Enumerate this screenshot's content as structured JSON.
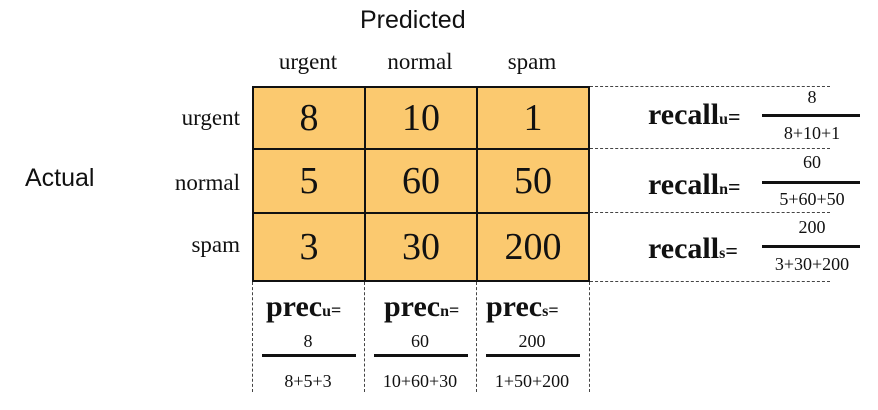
{
  "title_predicted": "Predicted",
  "title_actual": "Actual",
  "columns": [
    "urgent",
    "normal",
    "spam"
  ],
  "rows": [
    "urgent",
    "normal",
    "spam"
  ],
  "matrix": [
    [
      "8",
      "10",
      "1"
    ],
    [
      "5",
      "60",
      "50"
    ],
    [
      "3",
      "30",
      "200"
    ]
  ],
  "recall": [
    {
      "label": "recall",
      "sub": "u",
      "eq": "=",
      "num": "8",
      "den": "8+10+1"
    },
    {
      "label": "recall",
      "sub": "n",
      "eq": "=",
      "num": "60",
      "den": "5+60+50"
    },
    {
      "label": "recall",
      "sub": "s",
      "eq": "=",
      "num": "200",
      "den": "3+30+200"
    }
  ],
  "precision": [
    {
      "label": "prec",
      "sub": "u",
      "eq": "=",
      "num": "8",
      "den": "8+5+3"
    },
    {
      "label": "prec",
      "sub": "n",
      "eq": "=",
      "num": "60",
      "den": "10+60+30"
    },
    {
      "label": "prec",
      "sub": "s",
      "eq": "=",
      "num": "200",
      "den": "1+50+200"
    }
  ],
  "colors": {
    "cell_fill": "#fbc96f",
    "border": "#111111"
  }
}
